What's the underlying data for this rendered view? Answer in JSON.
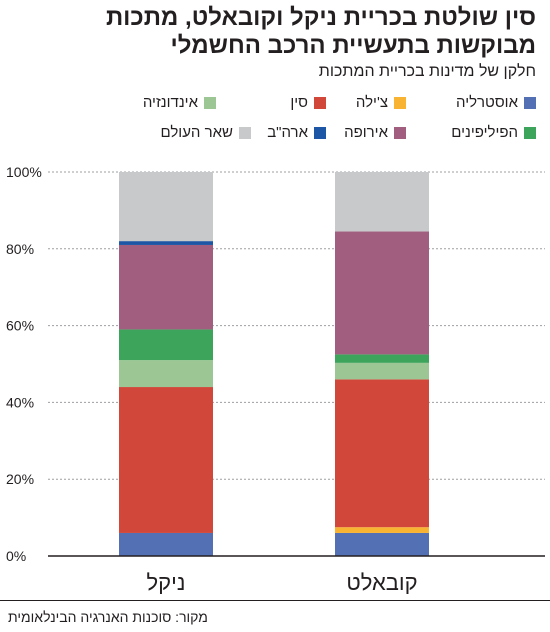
{
  "title": "סין שולטת בכריית ניקל וקובאלט, מתכות מבוקשות בתעשיית הרכב החשמלי",
  "subtitle": "חלקן של מדינות בכריית המתכות",
  "source": "מקור: סוכנות האנרגיה הבינלאומית",
  "chart_data": {
    "type": "bar",
    "stacked": true,
    "categories": [
      "ניקל",
      "קובאלט"
    ],
    "y_ticks": [
      "0%",
      "20%",
      "40%",
      "60%",
      "80%",
      "100%"
    ],
    "ylim": [
      0,
      100
    ],
    "grid": true,
    "legend_position": "top",
    "series": [
      {
        "name": "אוסטרליה",
        "color": "#5470b4",
        "values": [
          6,
          6
        ]
      },
      {
        "name": "צ'ילה",
        "color": "#f8b332",
        "values": [
          0,
          1.5
        ]
      },
      {
        "name": "סין",
        "color": "#d1473a",
        "values": [
          38,
          38.5
        ]
      },
      {
        "name": "אינדונזיה",
        "color": "#9cc795",
        "values": [
          7,
          4.3
        ]
      },
      {
        "name": "הפיליפינים",
        "color": "#3ca45b",
        "values": [
          8,
          2.2
        ]
      },
      {
        "name": "אירופה",
        "color": "#a25e7f",
        "values": [
          22,
          32
        ]
      },
      {
        "name": "ארה\"ב",
        "color": "#1d56a4",
        "values": [
          1,
          0
        ]
      },
      {
        "name": "שאר העולם",
        "color": "#c8c9cb",
        "values": [
          18,
          15.5
        ]
      }
    ]
  }
}
